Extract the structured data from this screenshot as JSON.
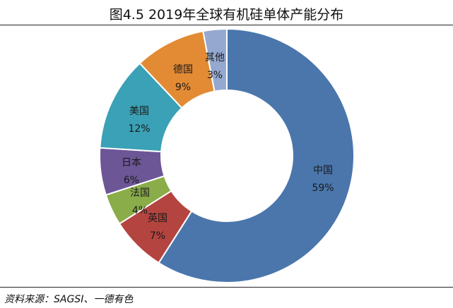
{
  "chart_data": {
    "type": "pie",
    "title": "图4.5 2019年全球有机硅单体产能分布",
    "slices": [
      {
        "name": "中国",
        "label": "59%",
        "value": 59,
        "color": "#4a76ac"
      },
      {
        "name": "英国",
        "label": "7%",
        "value": 7,
        "color": "#b4443f"
      },
      {
        "name": "法国",
        "label": "4%",
        "value": 4,
        "color": "#8aac49"
      },
      {
        "name": "日本",
        "label": "6%",
        "value": 6,
        "color": "#6c5696"
      },
      {
        "name": "美国",
        "label": "12%",
        "value": 12,
        "color": "#3aa1b6"
      },
      {
        "name": "德国",
        "label": "9%",
        "value": 9,
        "color": "#e38b34"
      },
      {
        "name": "其他",
        "label": "3%",
        "value": 3,
        "color": "#94a8d0"
      }
    ]
  },
  "source": "资料来源：SAGSI、一德有色"
}
